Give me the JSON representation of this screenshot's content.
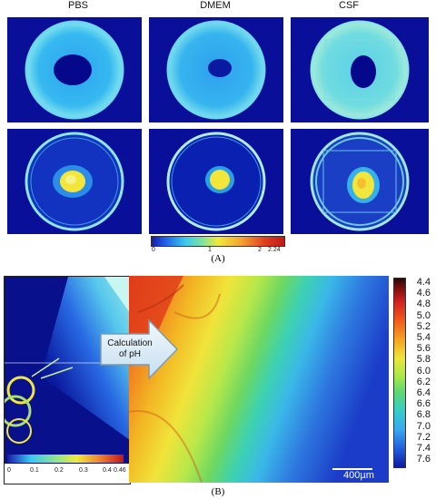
{
  "panel_a": {
    "columns": [
      "PBS",
      "DMEM",
      "CSF"
    ],
    "colorbar": {
      "ticks": [
        "0",
        "1",
        "2",
        "2.24"
      ]
    },
    "label": "(A)"
  },
  "panel_b": {
    "arrow_text_line1": "Calculation",
    "arrow_text_line2": "of pH",
    "inset_ticks": [
      "0",
      "0.1",
      "0.2",
      "0.3",
      "0.4",
      "0.46"
    ],
    "ph_scale": [
      "4.4",
      "4.6",
      "4.8",
      "5.0",
      "5.2",
      "5.4",
      "5.6",
      "5.8",
      "6.0",
      "6.2",
      "6.4",
      "6.6",
      "6.8",
      "7.0",
      "7.2",
      "7.4",
      "7.6"
    ],
    "scale_bar": "400µm",
    "label": "(B)"
  },
  "colors": {
    "background_blue": "#0a0f9a",
    "ring_cyan": "#5fd0f0",
    "highlight_yellow": "#f2e63a"
  }
}
